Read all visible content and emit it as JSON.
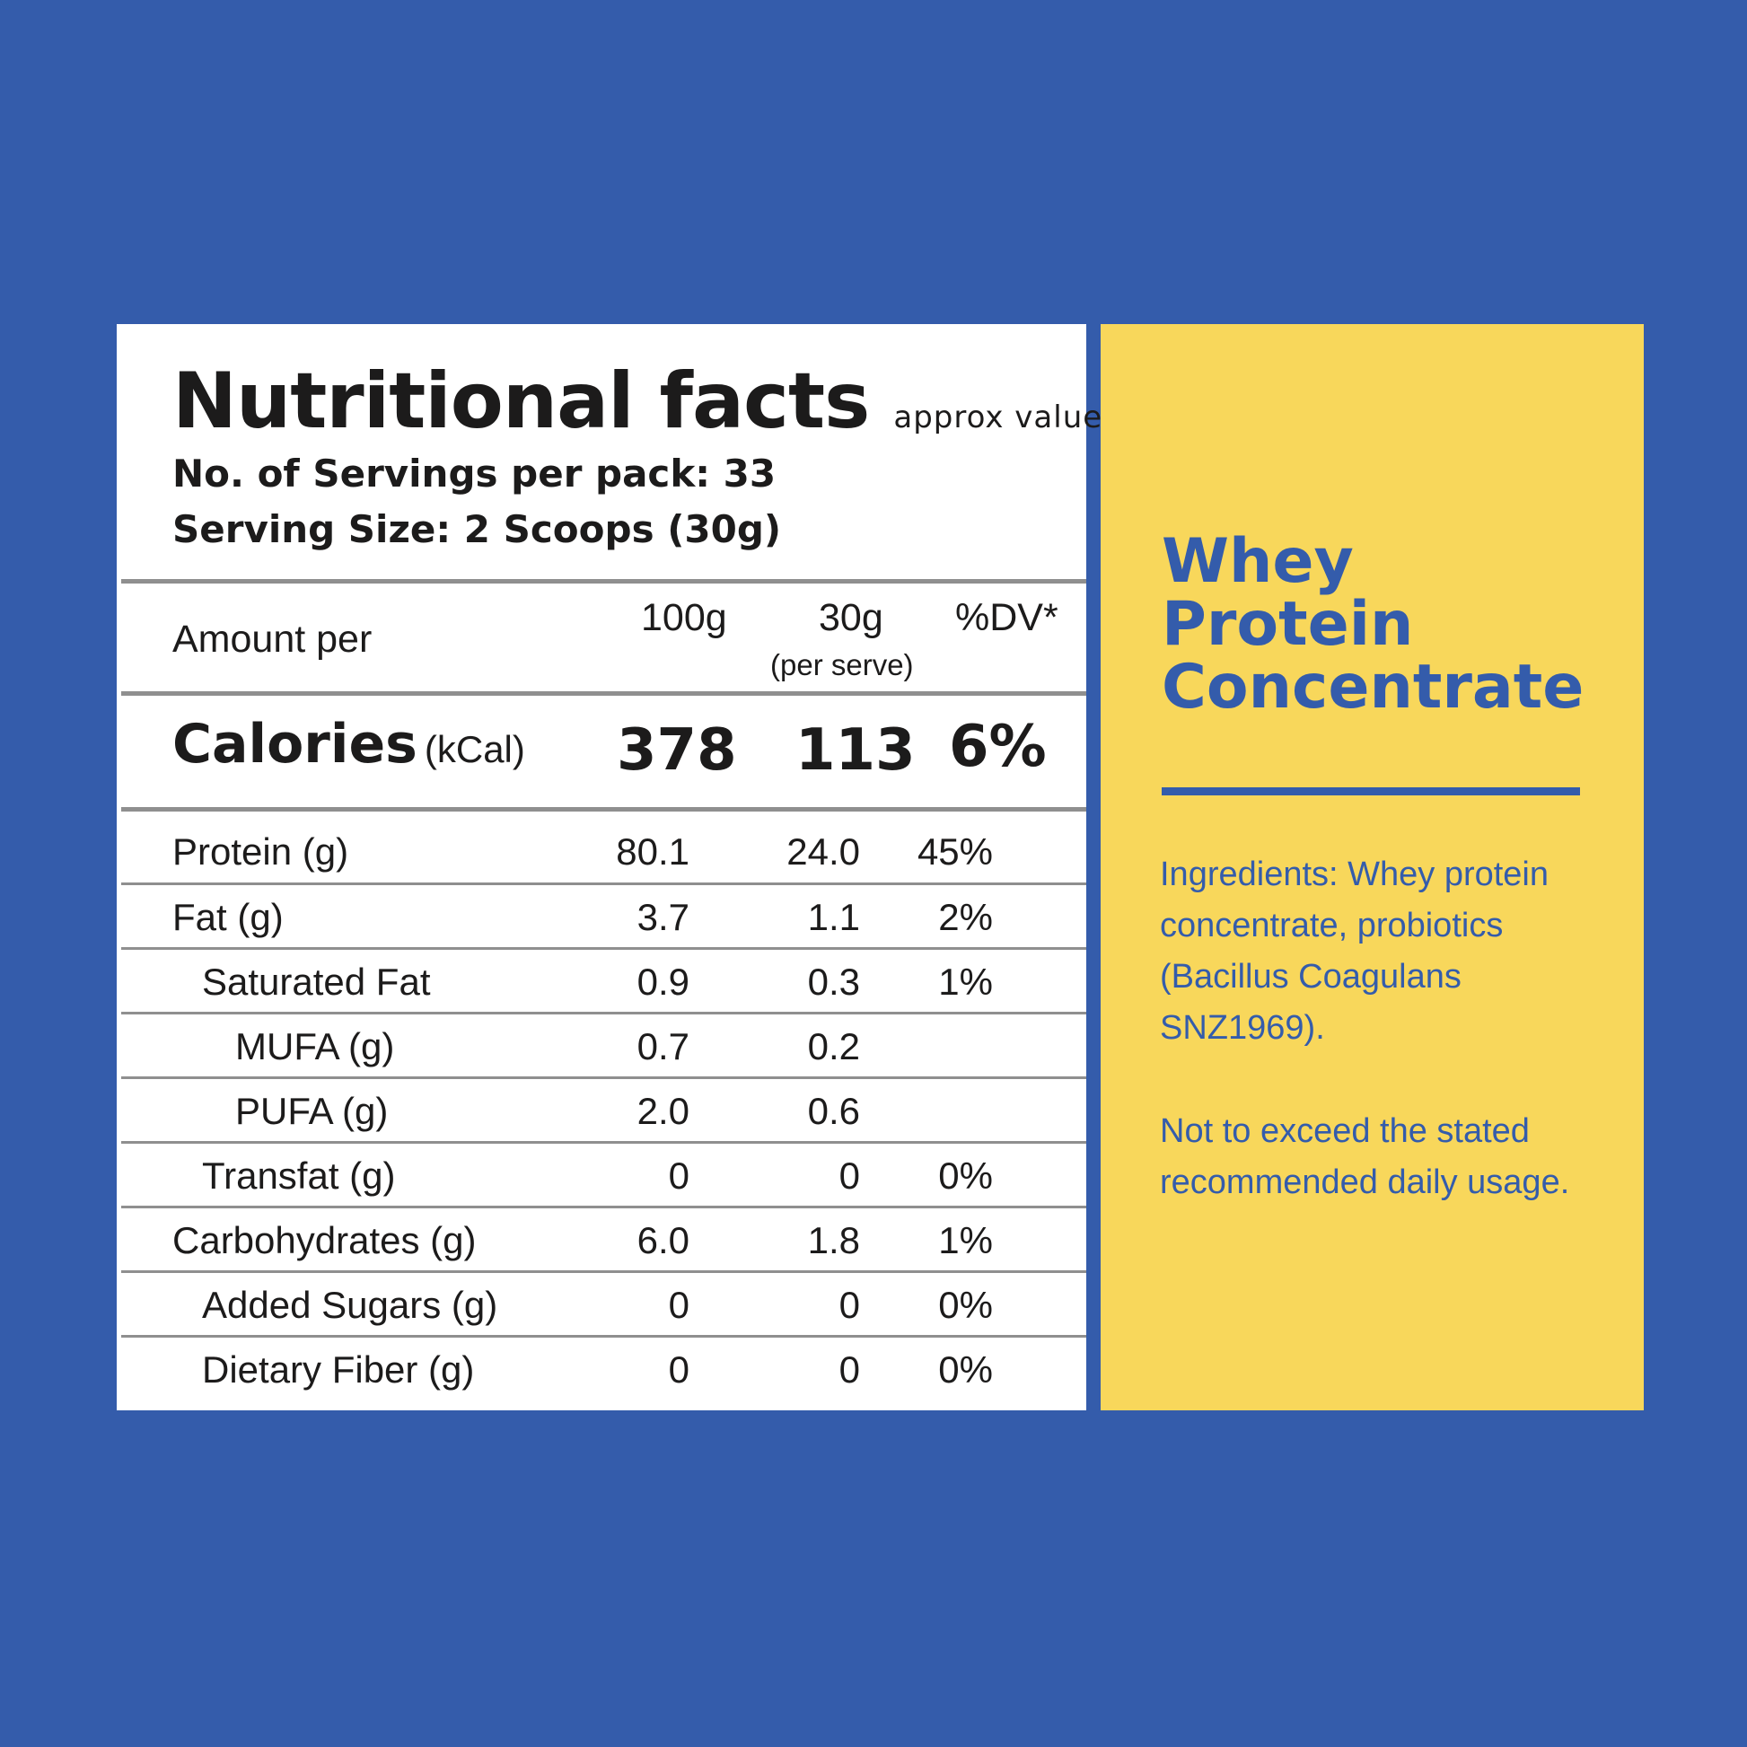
{
  "label": {
    "title": "Nutritional facts",
    "subtitle": "approx values",
    "servings_per_pack": "No. of Servings per pack: 33",
    "serving_size": "Serving Size: 2 Scoops (30g)",
    "header": {
      "amount_per": "Amount per",
      "col_100g": "100g",
      "col_30g": "30g",
      "col_30g_note": "(per serve)",
      "col_dv": "%DV*"
    },
    "calories": {
      "label": "Calories",
      "unit": "(kCal)",
      "per_100g": "378",
      "per_30g": "113",
      "dv": "6%"
    },
    "rows": [
      {
        "name": "Protein (g)",
        "per_100g": "80.1",
        "per_30g": "24.0",
        "dv": "45%"
      },
      {
        "name": "Fat (g)",
        "per_100g": "3.7",
        "per_30g": "1.1",
        "dv": "2%"
      },
      {
        "name": "Saturated Fat",
        "per_100g": "0.9",
        "per_30g": "0.3",
        "dv": "1%"
      },
      {
        "name": "MUFA (g)",
        "per_100g": "0.7",
        "per_30g": "0.2",
        "dv": ""
      },
      {
        "name": "PUFA (g)",
        "per_100g": "2.0",
        "per_30g": "0.6",
        "dv": ""
      },
      {
        "name": "Transfat (g)",
        "per_100g": "0",
        "per_30g": "0",
        "dv": "0%"
      },
      {
        "name": "Carbohydrates (g)",
        "per_100g": "6.0",
        "per_30g": "1.8",
        "dv": "1%"
      },
      {
        "name": "Added Sugars (g)",
        "per_100g": "0",
        "per_30g": "0",
        "dv": "0%"
      },
      {
        "name": "Dietary Fiber (g)",
        "per_100g": "0",
        "per_30g": "0",
        "dv": "0%"
      }
    ]
  },
  "product": {
    "title_line1": "Whey",
    "title_line2": "Protein",
    "title_line3": "Concentrate",
    "ingredients": "Ingredients: Whey protein concentrate, probiotics (Bacillus Coagulans SNZ1969).",
    "warning": "Not to exceed the stated recommended daily usage."
  },
  "colors": {
    "background": "#345cab",
    "label_panel": "#ffffff",
    "info_panel": "#f8d75b",
    "text_dark": "#1c1b1b",
    "text_blue": "#345cab",
    "rules": "#8f8f8f"
  }
}
